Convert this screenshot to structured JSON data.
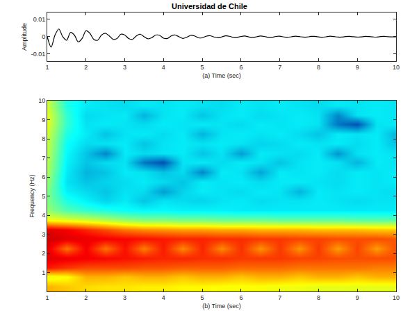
{
  "chart_data": [
    {
      "type": "line",
      "title": "Universidad de Chile",
      "x_label": "(a) Time (sec)",
      "y_label": "Amplitude",
      "color": "#000000",
      "x": [
        1.0,
        1.1,
        1.2,
        1.3,
        1.4,
        1.5,
        1.6,
        1.7,
        1.8,
        1.9,
        2.0,
        2.1,
        2.2,
        2.3,
        2.4,
        2.5,
        2.6,
        2.7,
        2.8,
        2.9,
        3.0,
        3.1,
        3.2,
        3.3,
        3.4,
        3.5,
        3.6,
        3.7,
        3.8,
        3.9,
        4.0,
        4.1,
        4.2,
        4.3,
        4.4,
        4.5,
        4.6,
        4.7,
        4.8,
        4.9,
        5.0,
        5.1,
        5.2,
        5.3,
        5.4,
        5.5,
        5.6,
        5.7,
        5.8,
        5.9,
        6.0,
        6.1,
        6.2,
        6.3,
        6.4,
        6.5,
        6.6,
        6.7,
        6.8,
        6.9,
        7.0,
        7.1,
        7.2,
        7.3,
        7.4,
        7.5,
        7.6,
        7.7,
        7.8,
        7.9,
        8.0,
        8.1,
        8.2,
        8.3,
        8.4,
        8.5,
        8.6,
        8.7,
        8.8,
        8.9,
        9.0,
        9.1,
        9.2,
        9.3,
        9.4,
        9.5,
        9.6,
        9.7,
        9.8,
        9.9,
        10.0
      ],
      "values": [
        0,
        -0.006,
        0.001,
        0.0045,
        0,
        -0.002,
        0.0025,
        0.001,
        -0.003,
        -0.001,
        0.0035,
        0.002,
        -0.0015,
        -0.002,
        0.001,
        0.002,
        0.0005,
        -0.0015,
        -0.001,
        0.0015,
        0.001,
        -0.001,
        -0.0015,
        0.0005,
        0.0015,
        0,
        -0.0012,
        -0.0005,
        0.001,
        0.0008,
        -0.0008,
        -0.001,
        0.0005,
        0.001,
        0,
        -0.001,
        -0.0003,
        0.0008,
        0.0005,
        -0.0006,
        -0.0006,
        0.0003,
        0.0006,
        -0.0001,
        -0.0006,
        -0.0001,
        0.0005,
        0.0003,
        -0.0004,
        -0.0004,
        0.0002,
        0.0004,
        -0.0001,
        -0.0004,
        0,
        0.0004,
        0.0002,
        -0.0003,
        -0.0003,
        0.0002,
        0.0003,
        -0.0001,
        -0.0003,
        0,
        0.0003,
        0.0001,
        -0.0002,
        -0.0002,
        0.0002,
        0.0002,
        -0.0001,
        -0.0003,
        0,
        0.0003,
        0.0001,
        -0.0002,
        -0.0002,
        0.0001,
        0.0002,
        0,
        -0.0002,
        -0.0001,
        0.0002,
        0.0001,
        -0.0001,
        -0.0002,
        0.0001,
        0.0002,
        0,
        -0.0001,
        -0.0001
      ],
      "xlim": [
        1,
        10
      ],
      "ylim": [
        -0.014,
        0.014
      ],
      "xticks": [
        1,
        2,
        3,
        4,
        5,
        6,
        7,
        8,
        9,
        10
      ],
      "yticks": [
        -0.01,
        0,
        0.01
      ],
      "grid": false
    },
    {
      "type": "heatmap",
      "x_label": "(b) Time (sec)",
      "y_label": "Frequency (Hz)",
      "color": "Jet",
      "x": [
        1,
        1.5,
        2,
        2.5,
        3,
        3.5,
        4,
        4.5,
        5,
        5.5,
        6,
        6.5,
        7,
        7.5,
        8,
        8.5,
        9,
        9.5,
        10
      ],
      "y": [
        0.25,
        0.75,
        1.25,
        1.75,
        2.25,
        2.75,
        3.25,
        3.75,
        4.25,
        4.75,
        5.25,
        5.75,
        6.25,
        6.75,
        7.25,
        7.75,
        8.25,
        8.75,
        9.25,
        9.75
      ],
      "z": [
        [
          0.7,
          0.68,
          0.66,
          0.65,
          0.65,
          0.64,
          0.64,
          0.63,
          0.63,
          0.62,
          0.62,
          0.62,
          0.61,
          0.61,
          0.6,
          0.6,
          0.6,
          0.6,
          0.6
        ],
        [
          0.6,
          0.62,
          0.7,
          0.7,
          0.68,
          0.7,
          0.7,
          0.68,
          0.7,
          0.7,
          0.68,
          0.7,
          0.7,
          0.68,
          0.7,
          0.7,
          0.68,
          0.7,
          0.7
        ],
        [
          0.85,
          0.82,
          0.8,
          0.8,
          0.8,
          0.79,
          0.79,
          0.78,
          0.78,
          0.78,
          0.77,
          0.77,
          0.77,
          0.76,
          0.76,
          0.76,
          0.76,
          0.75,
          0.75
        ],
        [
          0.9,
          0.89,
          0.88,
          0.87,
          0.86,
          0.85,
          0.84,
          0.84,
          0.83,
          0.83,
          0.82,
          0.82,
          0.82,
          0.81,
          0.81,
          0.8,
          0.8,
          0.8,
          0.8
        ],
        [
          0.9,
          0.76,
          0.88,
          0.76,
          0.86,
          0.75,
          0.85,
          0.74,
          0.84,
          0.74,
          0.83,
          0.73,
          0.82,
          0.73,
          0.82,
          0.72,
          0.81,
          0.72,
          0.8
        ],
        [
          0.92,
          0.9,
          0.89,
          0.88,
          0.87,
          0.86,
          0.85,
          0.84,
          0.84,
          0.83,
          0.83,
          0.82,
          0.82,
          0.81,
          0.81,
          0.8,
          0.8,
          0.8,
          0.79
        ],
        [
          0.9,
          0.88,
          0.84,
          0.8,
          0.76,
          0.74,
          0.73,
          0.72,
          0.72,
          0.71,
          0.71,
          0.7,
          0.7,
          0.7,
          0.69,
          0.69,
          0.69,
          0.68,
          0.68
        ],
        [
          0.62,
          0.6,
          0.58,
          0.55,
          0.52,
          0.5,
          0.5,
          0.49,
          0.49,
          0.48,
          0.48,
          0.48,
          0.47,
          0.47,
          0.47,
          0.47,
          0.46,
          0.46,
          0.46
        ],
        [
          0.52,
          0.45,
          0.42,
          0.4,
          0.38,
          0.37,
          0.37,
          0.36,
          0.36,
          0.36,
          0.35,
          0.35,
          0.35,
          0.35,
          0.35,
          0.35,
          0.35,
          0.35,
          0.35
        ],
        [
          0.5,
          0.4,
          0.36,
          0.32,
          0.35,
          0.3,
          0.34,
          0.33,
          0.32,
          0.34,
          0.35,
          0.33,
          0.34,
          0.34,
          0.35,
          0.34,
          0.33,
          0.34,
          0.34
        ],
        [
          0.5,
          0.36,
          0.33,
          0.3,
          0.34,
          0.33,
          0.25,
          0.32,
          0.35,
          0.34,
          0.33,
          0.35,
          0.34,
          0.28,
          0.35,
          0.34,
          0.35,
          0.34,
          0.33
        ],
        [
          0.52,
          0.34,
          0.3,
          0.32,
          0.33,
          0.35,
          0.33,
          0.3,
          0.35,
          0.34,
          0.35,
          0.33,
          0.35,
          0.35,
          0.34,
          0.33,
          0.35,
          0.34,
          0.35
        ],
        [
          0.54,
          0.35,
          0.28,
          0.3,
          0.35,
          0.34,
          0.3,
          0.33,
          0.22,
          0.35,
          0.34,
          0.26,
          0.35,
          0.34,
          0.35,
          0.33,
          0.35,
          0.34,
          0.35
        ],
        [
          0.55,
          0.36,
          0.3,
          0.33,
          0.34,
          0.2,
          0.15,
          0.34,
          0.35,
          0.33,
          0.35,
          0.34,
          0.3,
          0.34,
          0.35,
          0.34,
          0.28,
          0.35,
          0.34
        ],
        [
          0.56,
          0.37,
          0.3,
          0.22,
          0.35,
          0.33,
          0.34,
          0.35,
          0.3,
          0.34,
          0.25,
          0.35,
          0.34,
          0.33,
          0.35,
          0.24,
          0.34,
          0.35,
          0.34
        ],
        [
          0.57,
          0.38,
          0.33,
          0.34,
          0.35,
          0.3,
          0.34,
          0.35,
          0.34,
          0.35,
          0.34,
          0.32,
          0.33,
          0.35,
          0.34,
          0.35,
          0.33,
          0.35,
          0.3
        ],
        [
          0.58,
          0.4,
          0.35,
          0.3,
          0.34,
          0.35,
          0.33,
          0.35,
          0.28,
          0.34,
          0.35,
          0.34,
          0.35,
          0.33,
          0.3,
          0.35,
          0.34,
          0.35,
          0.28
        ],
        [
          0.6,
          0.42,
          0.34,
          0.35,
          0.34,
          0.33,
          0.35,
          0.34,
          0.35,
          0.34,
          0.33,
          0.35,
          0.34,
          0.35,
          0.34,
          0.2,
          0.15,
          0.34,
          0.35
        ],
        [
          0.6,
          0.42,
          0.33,
          0.34,
          0.35,
          0.28,
          0.34,
          0.35,
          0.3,
          0.34,
          0.35,
          0.33,
          0.34,
          0.35,
          0.34,
          0.22,
          0.34,
          0.35,
          0.34
        ],
        [
          0.58,
          0.4,
          0.35,
          0.34,
          0.33,
          0.35,
          0.34,
          0.35,
          0.34,
          0.33,
          0.35,
          0.34,
          0.35,
          0.34,
          0.33,
          0.35,
          0.34,
          0.35,
          0.34
        ]
      ],
      "zlim": [
        0,
        1
      ],
      "xlim": [
        1,
        10
      ],
      "ylim": [
        0,
        10
      ],
      "xticks": [
        1,
        2,
        3,
        4,
        5,
        6,
        7,
        8,
        9,
        10
      ],
      "yticks": [
        1,
        2,
        3,
        4,
        5,
        6,
        7,
        8,
        9,
        10
      ],
      "grid": false
    }
  ]
}
